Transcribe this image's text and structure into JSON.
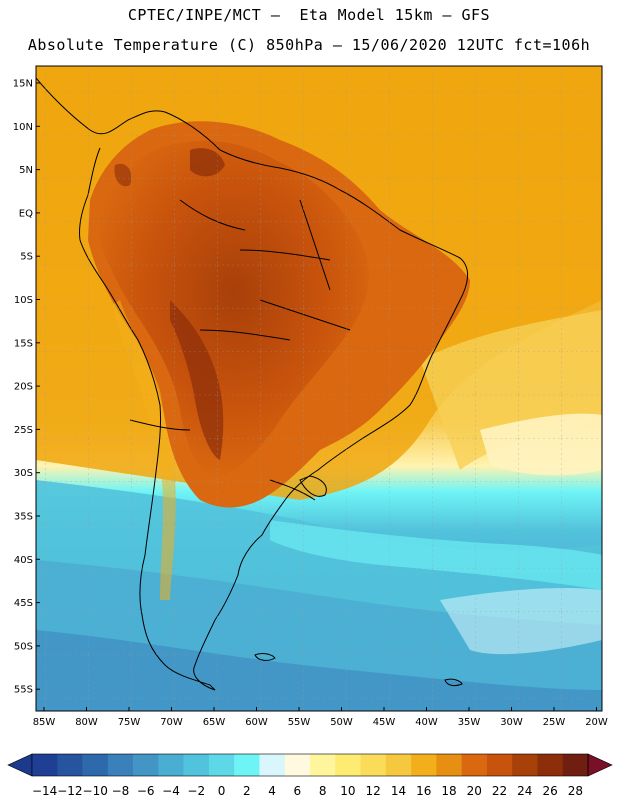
{
  "header": {
    "line1": "CPTEC/INPE/MCT –  Eta Model 15km – GFS",
    "line2": "Absolute Temperature (C) 850hPa – 15/06/2020 12UTC fct=106h"
  },
  "axes": {
    "lat_labels": [
      "15N",
      "10N",
      "5N",
      "EQ",
      "5S",
      "10S",
      "15S",
      "20S",
      "25S",
      "30S",
      "35S",
      "40S",
      "45S",
      "50S",
      "55S"
    ],
    "lon_labels": [
      "85W",
      "80W",
      "75W",
      "70W",
      "65W",
      "60W",
      "55W",
      "50W",
      "45W",
      "40W",
      "35W",
      "30W",
      "25W",
      "20W"
    ]
  },
  "colorbar": {
    "labels": [
      "-14",
      "-12",
      "-10",
      "-8",
      "-6",
      "-4",
      "-2",
      "0",
      "2",
      "4",
      "6",
      "8",
      "10",
      "12",
      "14",
      "16",
      "18",
      "20",
      "22",
      "24",
      "26",
      "28"
    ],
    "colors": [
      "#1f3f95",
      "#27549f",
      "#2e69ac",
      "#3a80ba",
      "#4295c4",
      "#4aaed2",
      "#52c3dc",
      "#5ed8e6",
      "#6ff4f6",
      "#d8f6fb",
      "#fff9e0",
      "#fff59d",
      "#fdeb72",
      "#fadc5a",
      "#f6c840",
      "#f3ae1c",
      "#e68f12",
      "#d96810",
      "#c8530c",
      "#a8400a",
      "#8c2e0a",
      "#701e10"
    ],
    "low_color": "#1c3a8c",
    "high_color": "#7a0f28"
  }
}
